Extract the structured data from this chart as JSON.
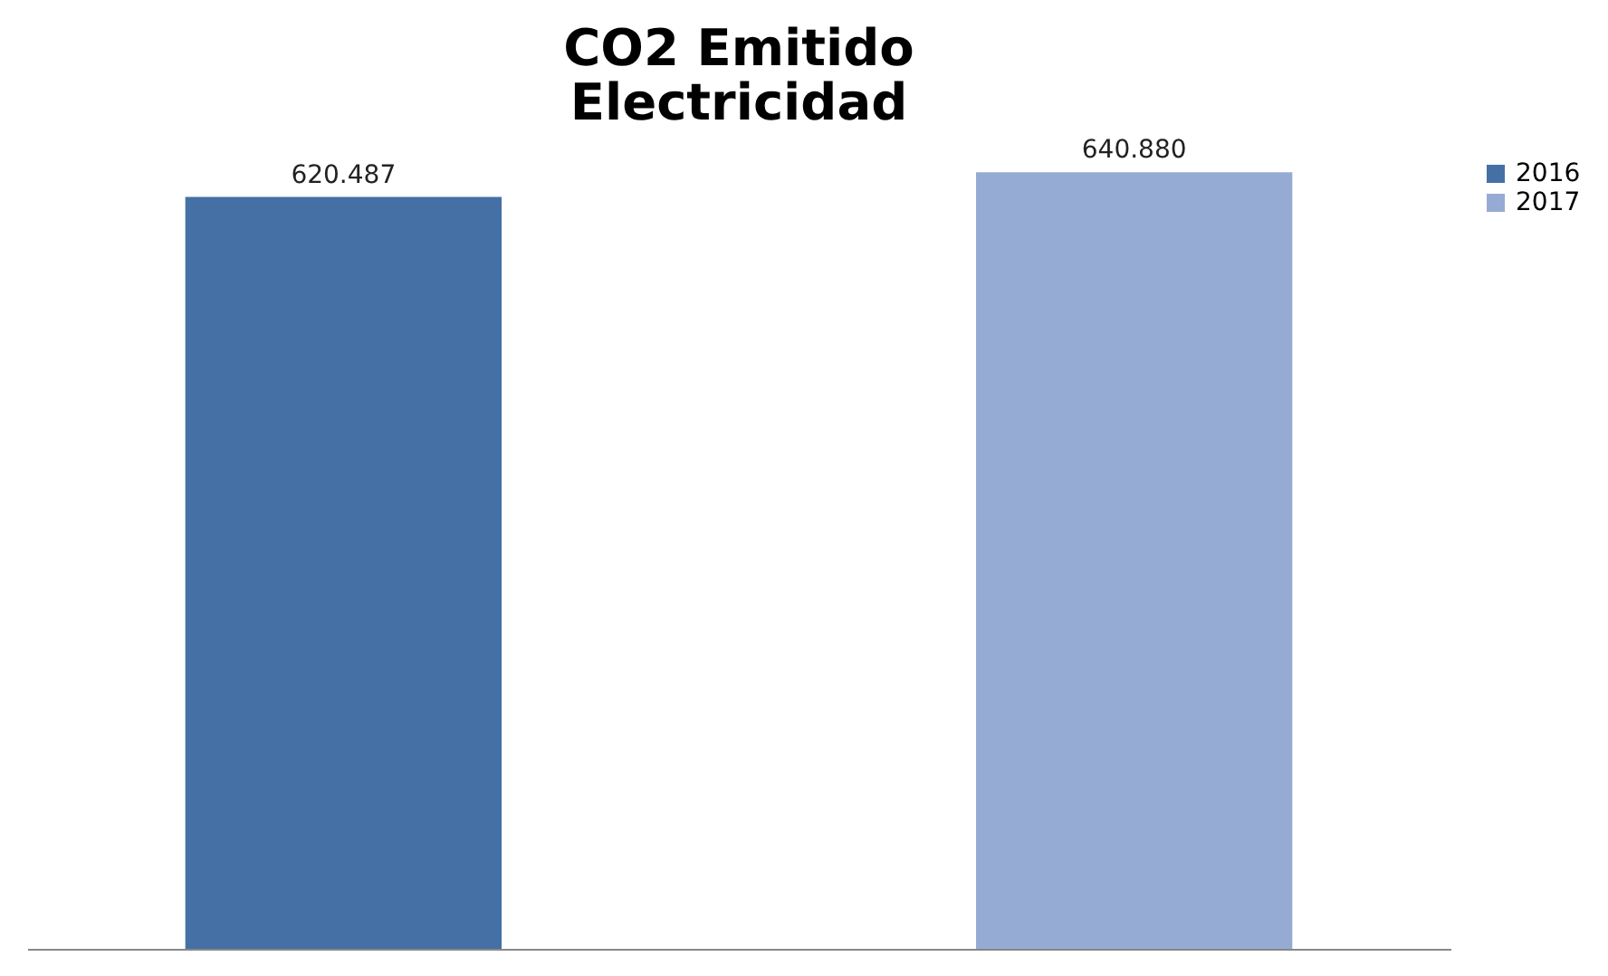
{
  "chart_data": {
    "type": "bar",
    "title": "CO2 Emitido\nElectricidad",
    "categories": [
      null,
      null
    ],
    "stacked": true,
    "series": [
      {
        "name": "2016",
        "color": "#4470a6",
        "values": [
          620.487,
          null
        ],
        "value_labels": [
          "620.487",
          null
        ]
      },
      {
        "name": "2017",
        "color": "#95abd4",
        "values": [
          null,
          640.88
        ],
        "value_labels": [
          null,
          "640.880"
        ]
      }
    ],
    "legend": "right",
    "grid": false
  }
}
